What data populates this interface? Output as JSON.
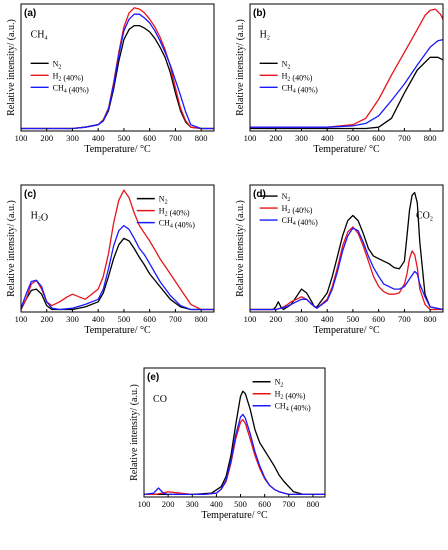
{
  "figure": {
    "xlabel": "Temperature/ °C",
    "ylabel": "Relative intensity/ (a.u.)"
  },
  "colors": {
    "N2": "#000000",
    "H2 (40%)": "#e8141c",
    "CH4 (40%)": "#1a1aff"
  },
  "chart_data": [
    {
      "panel": "(a)",
      "species": "CH4",
      "type": "line",
      "xlabel": "Temperature/ °C",
      "ylabel": "Relative intensity/ (a.u.)",
      "xlim": [
        100,
        850
      ],
      "ylim": [
        0,
        100
      ],
      "xticks": [
        100,
        200,
        300,
        400,
        500,
        600,
        700,
        800
      ],
      "legend_position": "middle-left",
      "series": [
        {
          "name": "N2",
          "color": "#000000",
          "x": [
            100,
            200,
            300,
            350,
            400,
            420,
            440,
            460,
            480,
            500,
            520,
            540,
            560,
            580,
            600,
            620,
            640,
            660,
            680,
            700,
            720,
            740,
            760,
            800,
            850
          ],
          "y": [
            2,
            2,
            2,
            3,
            5,
            8,
            16,
            33,
            55,
            72,
            80,
            83,
            83,
            81,
            78,
            73,
            66,
            58,
            46,
            30,
            16,
            7,
            3,
            2,
            2
          ]
        },
        {
          "name": "H2 (40%)",
          "color": "#e8141c",
          "x": [
            100,
            200,
            300,
            350,
            400,
            420,
            440,
            460,
            480,
            500,
            520,
            540,
            560,
            580,
            600,
            620,
            640,
            660,
            680,
            700,
            720,
            740,
            760,
            800,
            850
          ],
          "y": [
            2,
            2,
            2,
            3,
            5,
            9,
            18,
            38,
            62,
            82,
            93,
            97,
            96,
            93,
            88,
            82,
            74,
            64,
            51,
            34,
            18,
            8,
            3,
            2,
            2
          ]
        },
        {
          "name": "CH4 (40%)",
          "color": "#1a1aff",
          "x": [
            100,
            200,
            300,
            350,
            400,
            420,
            440,
            460,
            480,
            500,
            520,
            540,
            560,
            580,
            600,
            620,
            640,
            660,
            680,
            700,
            720,
            740,
            760,
            800,
            850
          ],
          "y": [
            2,
            2,
            2,
            3,
            5,
            8,
            17,
            36,
            60,
            79,
            88,
            92,
            92,
            89,
            85,
            79,
            71,
            62,
            52,
            40,
            28,
            15,
            5,
            2,
            2
          ]
        }
      ]
    },
    {
      "panel": "(b)",
      "species": "H2",
      "type": "line",
      "xlabel": "Temperature/ °C",
      "ylabel": "Relative intensity/ (a.u.)",
      "xlim": [
        100,
        850
      ],
      "ylim": [
        0,
        100
      ],
      "xticks": [
        100,
        200,
        300,
        400,
        500,
        600,
        700,
        800
      ],
      "legend_position": "middle-left",
      "series": [
        {
          "name": "N2",
          "color": "#000000",
          "x": [
            100,
            200,
            300,
            400,
            500,
            550,
            600,
            650,
            700,
            750,
            800,
            830,
            850
          ],
          "y": [
            2,
            2,
            2,
            2,
            2,
            2,
            3,
            10,
            30,
            48,
            58,
            58,
            56
          ]
        },
        {
          "name": "H2 (40%)",
          "color": "#e8141c",
          "x": [
            100,
            200,
            300,
            400,
            450,
            500,
            550,
            600,
            650,
            700,
            750,
            780,
            800,
            820,
            840,
            850
          ],
          "y": [
            3,
            3,
            3,
            3,
            4,
            5,
            10,
            25,
            44,
            62,
            80,
            91,
            95,
            96,
            92,
            88
          ]
        },
        {
          "name": "CH4 (40%)",
          "color": "#1a1aff",
          "x": [
            100,
            200,
            300,
            400,
            500,
            550,
            600,
            650,
            700,
            750,
            800,
            830,
            850
          ],
          "y": [
            3,
            3,
            3,
            3,
            4,
            6,
            12,
            24,
            37,
            52,
            66,
            71,
            72
          ]
        }
      ]
    },
    {
      "panel": "(c)",
      "species": "H2O",
      "type": "line",
      "xlabel": "Temperature/ °C",
      "ylabel": "Relative intensity/ (a.u.)",
      "xlim": [
        100,
        850
      ],
      "ylim": [
        0,
        100
      ],
      "xticks": [
        100,
        200,
        300,
        400,
        500,
        600,
        700,
        800
      ],
      "legend_position": "top-right",
      "series": [
        {
          "name": "N2",
          "color": "#000000",
          "x": [
            100,
            120,
            140,
            160,
            180,
            200,
            220,
            250,
            300,
            350,
            400,
            420,
            440,
            460,
            480,
            500,
            520,
            540,
            560,
            580,
            600,
            640,
            680,
            720,
            760,
            800,
            850
          ],
          "y": [
            2,
            10,
            17,
            18,
            14,
            5,
            2,
            2,
            2,
            4,
            8,
            15,
            28,
            42,
            53,
            58,
            56,
            50,
            43,
            37,
            30,
            20,
            10,
            4,
            2,
            2,
            2
          ]
        },
        {
          "name": "H2 (40%)",
          "color": "#e8141c",
          "x": [
            100,
            120,
            140,
            160,
            180,
            200,
            220,
            250,
            280,
            300,
            350,
            400,
            420,
            440,
            460,
            480,
            500,
            520,
            540,
            560,
            580,
            600,
            640,
            680,
            720,
            760,
            800,
            850
          ],
          "y": [
            3,
            10,
            22,
            25,
            18,
            8,
            5,
            8,
            12,
            14,
            10,
            18,
            28,
            46,
            70,
            88,
            96,
            90,
            78,
            68,
            62,
            56,
            42,
            30,
            18,
            6,
            2,
            2
          ]
        },
        {
          "name": "CH4 (40%)",
          "color": "#1a1aff",
          "x": [
            100,
            120,
            140,
            160,
            180,
            200,
            220,
            250,
            300,
            350,
            400,
            420,
            440,
            460,
            480,
            500,
            520,
            540,
            560,
            580,
            600,
            640,
            680,
            720,
            760,
            800,
            850
          ],
          "y": [
            3,
            14,
            24,
            25,
            20,
            8,
            3,
            2,
            3,
            6,
            10,
            18,
            34,
            52,
            64,
            68,
            65,
            58,
            50,
            45,
            38,
            24,
            13,
            5,
            2,
            2,
            2
          ]
        }
      ]
    },
    {
      "panel": "(d)",
      "species": "CO2",
      "type": "line",
      "xlabel": "Temperature/ °C",
      "ylabel": "Relative intensity/ (a.u.)",
      "xlim": [
        100,
        850
      ],
      "ylim": [
        0,
        100
      ],
      "xticks": [
        100,
        200,
        300,
        400,
        500,
        600,
        700,
        800
      ],
      "legend_position": "top-left",
      "series": [
        {
          "name": "N2",
          "color": "#000000",
          "x": [
            100,
            190,
            200,
            210,
            220,
            230,
            260,
            280,
            300,
            320,
            340,
            350,
            360,
            400,
            420,
            440,
            460,
            480,
            500,
            520,
            540,
            560,
            580,
            600,
            620,
            640,
            660,
            680,
            700,
            710,
            720,
            730,
            740,
            750,
            760,
            780,
            800,
            850
          ],
          "y": [
            2,
            2,
            4,
            8,
            4,
            2,
            6,
            12,
            18,
            15,
            8,
            4,
            4,
            15,
            28,
            44,
            60,
            72,
            76,
            72,
            62,
            50,
            44,
            42,
            40,
            38,
            35,
            34,
            40,
            60,
            80,
            92,
            94,
            86,
            55,
            14,
            4,
            2
          ]
        },
        {
          "name": "H2 (40%)",
          "color": "#e8141c",
          "x": [
            100,
            200,
            220,
            240,
            260,
            280,
            300,
            320,
            340,
            360,
            400,
            420,
            440,
            460,
            480,
            500,
            520,
            540,
            560,
            580,
            600,
            620,
            640,
            660,
            680,
            700,
            710,
            720,
            730,
            740,
            750,
            760,
            780,
            800,
            850
          ],
          "y": [
            2,
            2,
            3,
            5,
            8,
            10,
            12,
            10,
            6,
            3,
            10,
            20,
            35,
            52,
            63,
            67,
            62,
            52,
            40,
            28,
            20,
            16,
            14,
            14,
            15,
            22,
            30,
            42,
            48,
            45,
            35,
            18,
            6,
            2,
            2
          ]
        },
        {
          "name": "CH4 (40%)",
          "color": "#1a1aff",
          "x": [
            100,
            200,
            240,
            280,
            300,
            320,
            340,
            360,
            400,
            420,
            440,
            460,
            480,
            500,
            520,
            540,
            560,
            580,
            600,
            620,
            640,
            660,
            680,
            700,
            720,
            740,
            750,
            760,
            780,
            800,
            850
          ],
          "y": [
            2,
            2,
            4,
            8,
            10,
            10,
            6,
            3,
            9,
            18,
            32,
            48,
            60,
            66,
            64,
            55,
            44,
            35,
            28,
            22,
            20,
            18,
            18,
            20,
            26,
            32,
            30,
            22,
            12,
            4,
            2
          ]
        }
      ]
    },
    {
      "panel": "(e)",
      "species": "CO",
      "type": "line",
      "xlabel": "Temperature/ °C",
      "ylabel": "Relative intensity/ (a.u.)",
      "xlim": [
        100,
        850
      ],
      "ylim": [
        0,
        100
      ],
      "xticks": [
        100,
        200,
        300,
        400,
        500,
        600,
        700,
        800
      ],
      "legend_position": "top-right",
      "series": [
        {
          "name": "N2",
          "color": "#000000",
          "x": [
            100,
            200,
            300,
            380,
            420,
            440,
            460,
            480,
            500,
            510,
            520,
            540,
            560,
            580,
            600,
            620,
            640,
            660,
            680,
            700,
            720,
            760,
            800,
            850
          ],
          "y": [
            2,
            2,
            2,
            3,
            8,
            16,
            32,
            56,
            78,
            82,
            80,
            68,
            52,
            42,
            36,
            30,
            24,
            17,
            12,
            8,
            4,
            2,
            2,
            2
          ]
        },
        {
          "name": "H2 (40%)",
          "color": "#e8141c",
          "x": [
            100,
            150,
            200,
            250,
            300,
            350,
            400,
            420,
            440,
            460,
            480,
            500,
            510,
            520,
            540,
            560,
            580,
            600,
            620,
            640,
            660,
            680,
            700,
            760,
            800,
            850
          ],
          "y": [
            2,
            2,
            4,
            3,
            2,
            2,
            3,
            6,
            12,
            26,
            45,
            58,
            60,
            57,
            45,
            32,
            22,
            14,
            9,
            6,
            4,
            3,
            2,
            2,
            2,
            2
          ]
        },
        {
          "name": "CH4 (40%)",
          "color": "#1a1aff",
          "x": [
            100,
            140,
            160,
            180,
            200,
            250,
            300,
            350,
            400,
            420,
            440,
            460,
            480,
            500,
            510,
            520,
            540,
            560,
            580,
            600,
            620,
            640,
            660,
            680,
            700,
            760,
            800,
            850
          ],
          "y": [
            2,
            3,
            7,
            3,
            2,
            2,
            2,
            2,
            3,
            6,
            13,
            28,
            48,
            62,
            64,
            61,
            49,
            35,
            24,
            15,
            9,
            6,
            4,
            3,
            2,
            2,
            2,
            2
          ]
        }
      ]
    }
  ]
}
